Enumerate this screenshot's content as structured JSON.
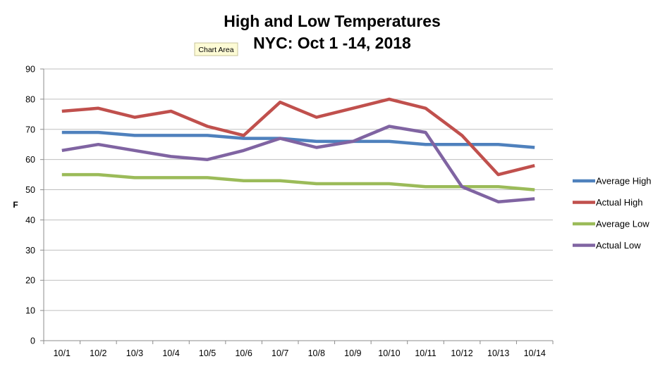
{
  "tooltip": {
    "text": "Chart Area"
  },
  "chart_data": {
    "type": "line",
    "title": "High and Low Temperatures",
    "subtitle": "NYC: Oct 1 -14, 2018",
    "xlabel": "",
    "ylabel": "F",
    "ylim": [
      0,
      90
    ],
    "yticks": [
      0,
      10,
      20,
      30,
      40,
      50,
      60,
      70,
      80,
      90
    ],
    "grid": true,
    "legend_position": "right",
    "categories": [
      "10/1",
      "10/2",
      "10/3",
      "10/4",
      "10/5",
      "10/6",
      "10/7",
      "10/8",
      "10/9",
      "10/10",
      "10/11",
      "10/12",
      "10/13",
      "10/14"
    ],
    "series": [
      {
        "name": "Average High",
        "color": "#4f81bd",
        "values": [
          69,
          69,
          68,
          68,
          68,
          67,
          67,
          66,
          66,
          66,
          65,
          65,
          65,
          64
        ]
      },
      {
        "name": "Actual High",
        "color": "#c0504d",
        "values": [
          76,
          77,
          74,
          76,
          71,
          68,
          79,
          74,
          77,
          80,
          77,
          68,
          55,
          58
        ]
      },
      {
        "name": "Average Low",
        "color": "#9bbb59",
        "values": [
          55,
          55,
          54,
          54,
          54,
          53,
          53,
          52,
          52,
          52,
          51,
          51,
          51,
          50
        ]
      },
      {
        "name": "Actual Low",
        "color": "#8064a2",
        "values": [
          63,
          65,
          63,
          61,
          60,
          63,
          67,
          64,
          66,
          71,
          69,
          51,
          46,
          47
        ]
      }
    ]
  }
}
